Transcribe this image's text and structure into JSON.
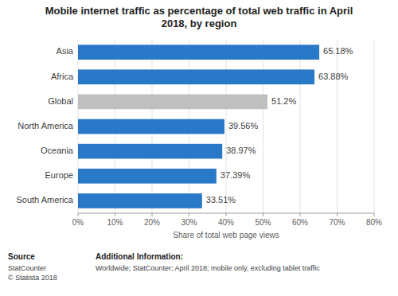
{
  "chart_data": {
    "type": "bar",
    "orientation": "horizontal",
    "title": "Mobile internet traffic as percentage of total web traffic in April\n2018, by region",
    "categories": [
      "South America",
      "Europe",
      "Oceania",
      "North America",
      "Global",
      "Africa",
      "Asia"
    ],
    "values": [
      33.51,
      37.39,
      38.97,
      39.56,
      51.2,
      63.88,
      65.18
    ],
    "value_labels": [
      "33.51%",
      "37.39%",
      "38.97%",
      "39.56%",
      "51.2%",
      "63.88%",
      "65.18%"
    ],
    "colors": [
      "#2979c8",
      "#2979c8",
      "#2979c8",
      "#2979c8",
      "#c0bfbf",
      "#2979c8",
      "#2979c8"
    ],
    "xlabel": "Share of total web page views",
    "xlim": [
      0,
      80
    ],
    "xticks": [
      {
        "value": 0,
        "label": "0%"
      },
      {
        "value": 10,
        "label": "10%"
      },
      {
        "value": 20,
        "label": "20%"
      },
      {
        "value": 30,
        "label": "30%"
      },
      {
        "value": 40,
        "label": "40%"
      },
      {
        "value": 50,
        "label": "50%"
      },
      {
        "value": 60,
        "label": "60%"
      },
      {
        "value": 70,
        "label": "70%"
      },
      {
        "value": 80,
        "label": "80%"
      }
    ],
    "grid": true,
    "data_labels": true,
    "annotations": [
      "Source",
      "StatCounter\n© Statista 2018",
      "Additional Information:",
      "Worldwide; StatCounter; April 2018; mobile only, excluding tablet traffic"
    ]
  }
}
